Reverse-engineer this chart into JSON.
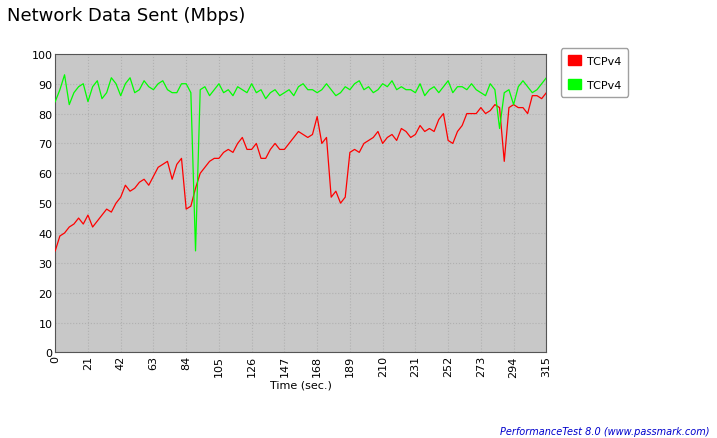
{
  "title": "Network Data Sent (Mbps)",
  "xlabel": "Time (sec.)",
  "xlim": [
    0,
    315
  ],
  "ylim": [
    0,
    100
  ],
  "xticks": [
    0.0,
    21.0,
    42.0,
    63.0,
    84.0,
    105.0,
    126.0,
    147.0,
    168.0,
    189.0,
    210.0,
    231.0,
    252.0,
    273.0,
    294.0,
    315.0
  ],
  "yticks": [
    0,
    10,
    20,
    30,
    40,
    50,
    60,
    70,
    80,
    90,
    100
  ],
  "bg_color": "#C8C8C8",
  "outer_bg_color": "#FFFFFF",
  "grid_color": "#B0B0B0",
  "title_fontsize": 13,
  "tick_fontsize": 8,
  "xlabel_fontsize": 8,
  "watermark": "PerformanceTest 8.0 (www.passmark.com)",
  "legend1_label": "TCPv4",
  "legend2_label": "TCPv4",
  "red_color": "#FF0000",
  "green_color": "#00FF00",
  "red_x": [
    0,
    3,
    6,
    9,
    12,
    15,
    18,
    21,
    24,
    27,
    30,
    33,
    36,
    39,
    42,
    45,
    48,
    51,
    54,
    57,
    60,
    63,
    66,
    69,
    72,
    75,
    78,
    81,
    84,
    87,
    90,
    93,
    96,
    99,
    102,
    105,
    108,
    111,
    114,
    117,
    120,
    123,
    126,
    129,
    132,
    135,
    138,
    141,
    144,
    147,
    150,
    153,
    156,
    159,
    162,
    165,
    168,
    171,
    174,
    177,
    180,
    183,
    186,
    189,
    192,
    195,
    198,
    201,
    204,
    207,
    210,
    213,
    216,
    219,
    222,
    225,
    228,
    231,
    234,
    237,
    240,
    243,
    246,
    249,
    252,
    255,
    258,
    261,
    264,
    267,
    270,
    273,
    276,
    279,
    282,
    285,
    288,
    291,
    294,
    297,
    300,
    303,
    306,
    309,
    312,
    315
  ],
  "red_y": [
    34,
    39,
    40,
    42,
    43,
    45,
    43,
    46,
    42,
    44,
    46,
    48,
    47,
    50,
    52,
    56,
    54,
    55,
    57,
    58,
    56,
    59,
    62,
    63,
    64,
    58,
    63,
    65,
    48,
    49,
    55,
    60,
    62,
    64,
    65,
    65,
    67,
    68,
    67,
    70,
    72,
    68,
    68,
    70,
    65,
    65,
    68,
    70,
    68,
    68,
    70,
    72,
    74,
    73,
    72,
    73,
    79,
    70,
    72,
    52,
    54,
    50,
    52,
    67,
    68,
    67,
    70,
    71,
    72,
    74,
    70,
    72,
    73,
    71,
    75,
    74,
    72,
    73,
    76,
    74,
    75,
    74,
    78,
    80,
    71,
    70,
    74,
    76,
    80,
    80,
    80,
    82,
    80,
    81,
    83,
    82,
    64,
    82,
    83,
    82,
    82,
    80,
    86,
    86,
    85,
    87
  ],
  "green_x": [
    0,
    3,
    6,
    9,
    12,
    15,
    18,
    21,
    24,
    27,
    30,
    33,
    36,
    39,
    42,
    45,
    48,
    51,
    54,
    57,
    60,
    63,
    66,
    69,
    72,
    75,
    78,
    81,
    84,
    87,
    90,
    93,
    96,
    99,
    102,
    105,
    108,
    111,
    114,
    117,
    120,
    123,
    126,
    129,
    132,
    135,
    138,
    141,
    144,
    147,
    150,
    153,
    156,
    159,
    162,
    165,
    168,
    171,
    174,
    177,
    180,
    183,
    186,
    189,
    192,
    195,
    198,
    201,
    204,
    207,
    210,
    213,
    216,
    219,
    222,
    225,
    228,
    231,
    234,
    237,
    240,
    243,
    246,
    249,
    252,
    255,
    258,
    261,
    264,
    267,
    270,
    273,
    276,
    279,
    282,
    285,
    288,
    291,
    294,
    297,
    300,
    303,
    306,
    309,
    312,
    315
  ],
  "green_y": [
    84,
    88,
    93,
    83,
    87,
    89,
    90,
    84,
    89,
    91,
    85,
    87,
    92,
    90,
    86,
    90,
    92,
    87,
    88,
    91,
    89,
    88,
    90,
    91,
    88,
    87,
    87,
    90,
    90,
    87,
    34,
    88,
    89,
    86,
    88,
    90,
    87,
    88,
    86,
    89,
    88,
    87,
    90,
    87,
    88,
    85,
    87,
    88,
    86,
    87,
    88,
    86,
    89,
    90,
    88,
    88,
    87,
    88,
    90,
    88,
    86,
    87,
    89,
    88,
    90,
    91,
    88,
    89,
    87,
    88,
    90,
    89,
    91,
    88,
    89,
    88,
    88,
    87,
    90,
    86,
    88,
    89,
    87,
    89,
    91,
    87,
    89,
    89,
    88,
    90,
    88,
    87,
    86,
    90,
    88,
    75,
    87,
    88,
    83,
    89,
    91,
    89,
    87,
    88,
    90,
    92
  ]
}
